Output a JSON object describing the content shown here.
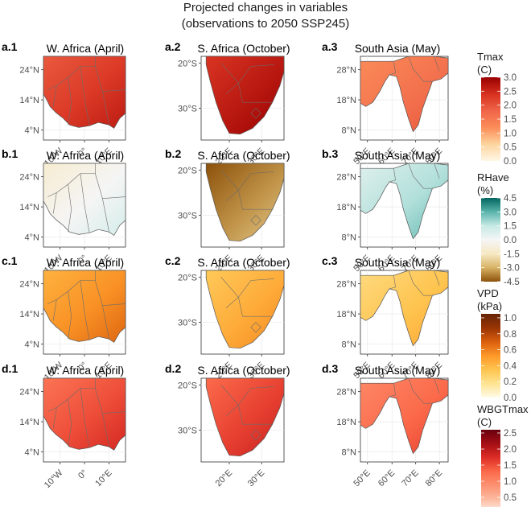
{
  "figure": {
    "title_line1": "Projected changes in variables",
    "title_line2": "(observations to 2050 SSP245)"
  },
  "chart_data": {
    "type": "heatmap",
    "rows": [
      {
        "tags": [
          "a.1",
          "a.2",
          "a.3"
        ],
        "variable": "Tmax"
      },
      {
        "tags": [
          "b.1",
          "b.2",
          "b.3"
        ],
        "variable": "RHave"
      },
      {
        "tags": [
          "c.1",
          "c.2",
          "c.3"
        ],
        "variable": "VPD"
      },
      {
        "tags": [
          "d.1",
          "d.2",
          "d.3"
        ],
        "variable": "WBGTmax"
      }
    ],
    "regions": [
      {
        "title": "W. Africa (April)",
        "lat_ticks": [
          "24°N",
          "14°N",
          "4°N"
        ],
        "lon_ticks": [
          "10°W",
          "0°",
          "10°E"
        ]
      },
      {
        "title": "S. Africa (October)",
        "lat_ticks": [
          "20°S",
          "30°S"
        ],
        "lon_ticks": [
          "20°E",
          "30°E"
        ]
      },
      {
        "title": "South Asia (May)",
        "lat_ticks": [
          "28°N",
          "18°N",
          "8°N"
        ],
        "lon_ticks": [
          "50°E",
          "60°E",
          "70°E",
          "80°E"
        ]
      }
    ],
    "panel_mean_change": [
      [
        2.3,
        2.7,
        1.6
      ],
      [
        0.0,
        -3.5,
        1.8
      ],
      [
        0.55,
        0.45,
        0.35
      ],
      [
        1.5,
        1.6,
        1.3
      ]
    ],
    "legends": [
      {
        "title_line1": "Tmax",
        "title_line2": "(C)",
        "ticks": [
          "3.0",
          "2.5",
          "2.0",
          "1.5",
          "1.0",
          "0.5",
          "0.0"
        ],
        "range": [
          0.0,
          3.0
        ],
        "colors": [
          "#fff7e6",
          "#fdd49e",
          "#fc8d59",
          "#ef6548",
          "#d7301f",
          "#990000"
        ]
      },
      {
        "title_line1": "RHave",
        "title_line2": "(%)",
        "ticks": [
          "4.5",
          "3.0",
          "1.5",
          "0.0",
          "-1.5",
          "-3.0",
          "-4.5"
        ],
        "range": [
          -4.5,
          4.5
        ],
        "colors": [
          "#8c510a",
          "#d8b365",
          "#f6e8c3",
          "#f5f5f5",
          "#c7eae5",
          "#5ab4ac",
          "#01665e"
        ]
      },
      {
        "title_line1": "VPD",
        "title_line2": "(kPa)",
        "ticks": [
          "1.0",
          "0.8",
          "0.6",
          "0.4",
          "0.2",
          "0.0"
        ],
        "range": [
          0.0,
          1.05
        ],
        "colors": [
          "#fffbe8",
          "#fee391",
          "#fec44f",
          "#fe9929",
          "#d95f0e",
          "#993404",
          "#662506"
        ]
      },
      {
        "title_line1": "WBGTmax",
        "title_line2": "(C)",
        "ticks": [
          "2.5",
          "2.0",
          "1.5",
          "1.0",
          "0.5",
          "0.0"
        ],
        "range": [
          0.0,
          2.6
        ],
        "colors": [
          "#fff5f0",
          "#fcbba1",
          "#fc9272",
          "#fb6a4a",
          "#de2d26",
          "#a50f15",
          "#67000d"
        ]
      }
    ]
  }
}
